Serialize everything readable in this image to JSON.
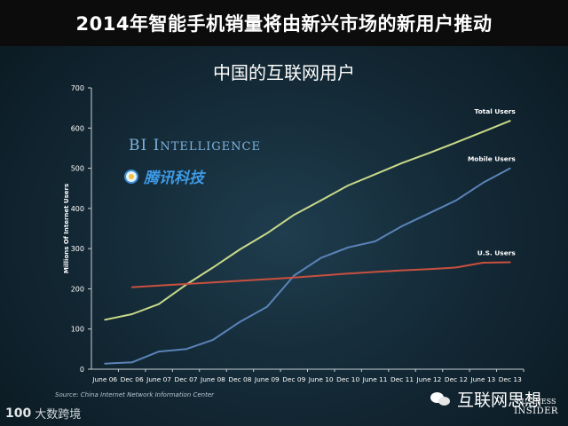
{
  "header": {
    "title": "2014年智能手机销量将由新兴市场的新用户推动"
  },
  "chart_data": {
    "type": "line",
    "title": "中国的互联网用户",
    "ylabel": "Millions Of Internet Users",
    "xlabel": "",
    "ylim": [
      0,
      700
    ],
    "yticks": [
      0,
      100,
      200,
      300,
      400,
      500,
      600,
      700
    ],
    "categories": [
      "June 06",
      "Dec 06",
      "June 07",
      "Dec 07",
      "June 08",
      "Dec 08",
      "June 09",
      "Dec 09",
      "June 10",
      "Dec 10",
      "June 11",
      "Dec 11",
      "June 12",
      "Dec 12",
      "June 13",
      "Dec 13"
    ],
    "grid": false,
    "series": [
      {
        "name": "Total Users",
        "color": "#c9d98a",
        "values": [
          123,
          137,
          162,
          210,
          253,
          298,
          338,
          384,
          420,
          457,
          485,
          513,
          538,
          564,
          591,
          618
        ]
      },
      {
        "name": "Mobile Users",
        "color": "#5a83b8",
        "values": [
          14,
          17,
          44,
          50,
          73,
          118,
          155,
          233,
          277,
          303,
          318,
          356,
          388,
          420,
          464,
          500
        ]
      },
      {
        "name": "U.S. Users",
        "color": "#c9503f",
        "values": [
          null,
          204,
          208,
          212,
          216,
          220,
          224,
          228,
          233,
          238,
          242,
          246,
          249,
          253,
          265,
          266
        ]
      }
    ]
  },
  "brand": {
    "bi_main": "BI I",
    "bi_rest": "NTELLIGENCE",
    "tencent": "腾讯科技"
  },
  "source": "Source: China Internet Network Information Center",
  "footer": {
    "logo_mark": "100",
    "logo_text": "大数跨境",
    "wechat_name": "互联网思想",
    "bi_line1": "BUSINESS",
    "bi_line2": "INSIDER"
  }
}
